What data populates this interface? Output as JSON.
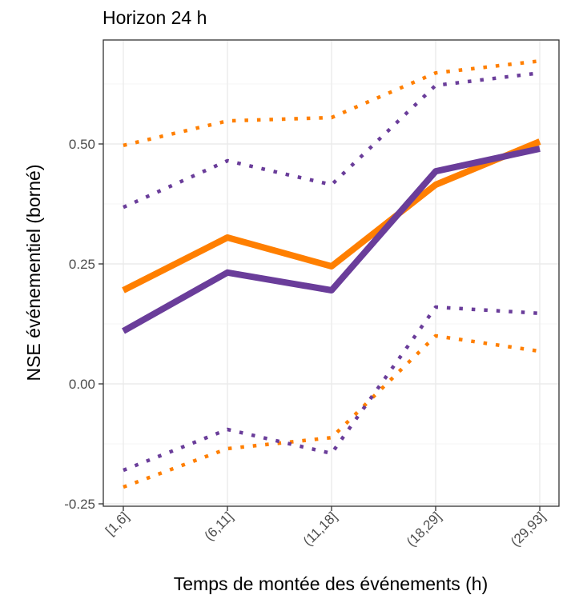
{
  "chart_data": {
    "type": "line",
    "title": "Horizon 24 h",
    "xlabel": "Temps de montée des événements (h)",
    "ylabel": "NSE événementiel (borné)",
    "categories": [
      "[1,6]",
      "(6,11]",
      "(11,18]",
      "(18,29]",
      "(29,93]"
    ],
    "ylim": [
      -0.25,
      0.74
    ],
    "yticks": [
      {
        "value": -0.25,
        "label": "-0.25"
      },
      {
        "value": 0.0,
        "label": "0.00"
      },
      {
        "value": 0.25,
        "label": "0.25"
      },
      {
        "value": 0.5,
        "label": "0.50"
      }
    ],
    "grid": true,
    "legend": "none",
    "series": [
      {
        "color": "#ff7f00",
        "style": "solid",
        "values": [
          0.195,
          0.305,
          0.245,
          0.415,
          0.505
        ]
      },
      {
        "color": "#6a3d9a",
        "style": "solid",
        "values": [
          0.11,
          0.232,
          0.195,
          0.443,
          0.49
        ]
      },
      {
        "color": "#ff7f00",
        "style": "dotted",
        "values": [
          0.497,
          0.548,
          0.555,
          0.648,
          0.673
        ]
      },
      {
        "color": "#6a3d9a",
        "style": "dotted",
        "values": [
          0.368,
          0.465,
          0.415,
          0.622,
          0.648
        ]
      },
      {
        "color": "#ff7f00",
        "style": "dotted",
        "values": [
          -0.215,
          -0.135,
          -0.112,
          0.1,
          0.068
        ]
      },
      {
        "color": "#6a3d9a",
        "style": "dotted",
        "values": [
          -0.18,
          -0.095,
          -0.145,
          0.16,
          0.147
        ]
      }
    ]
  }
}
